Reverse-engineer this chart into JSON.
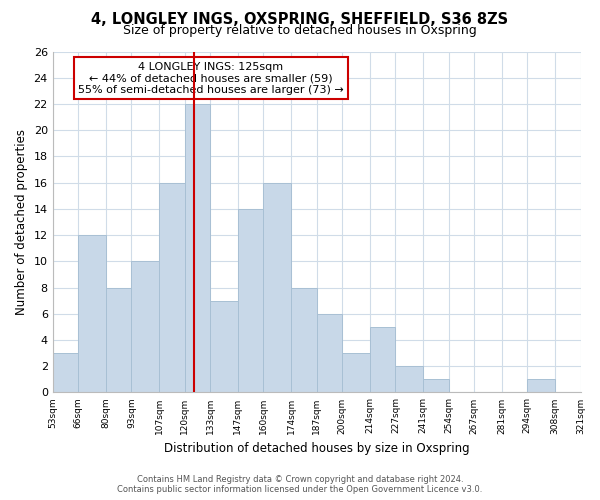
{
  "title": "4, LONGLEY INGS, OXSPRING, SHEFFIELD, S36 8ZS",
  "subtitle": "Size of property relative to detached houses in Oxspring",
  "xlabel": "Distribution of detached houses by size in Oxspring",
  "ylabel": "Number of detached properties",
  "bar_color": "#c8d8e8",
  "bar_edgecolor": "#a8c0d4",
  "reference_line_x": 125,
  "reference_line_color": "#cc0000",
  "annotation_lines": [
    "4 LONGLEY INGS: 125sqm",
    "← 44% of detached houses are smaller (59)",
    "55% of semi-detached houses are larger (73) →"
  ],
  "annotation_box_edgecolor": "#cc0000",
  "bins": [
    53,
    66,
    80,
    93,
    107,
    120,
    133,
    147,
    160,
    174,
    187,
    200,
    214,
    227,
    241,
    254,
    267,
    281,
    294,
    308,
    321
  ],
  "bin_labels": [
    "53sqm",
    "66sqm",
    "80sqm",
    "93sqm",
    "107sqm",
    "120sqm",
    "133sqm",
    "147sqm",
    "160sqm",
    "174sqm",
    "187sqm",
    "200sqm",
    "214sqm",
    "227sqm",
    "241sqm",
    "254sqm",
    "267sqm",
    "281sqm",
    "294sqm",
    "308sqm",
    "321sqm"
  ],
  "counts": [
    3,
    12,
    8,
    10,
    16,
    22,
    7,
    14,
    16,
    8,
    6,
    3,
    5,
    2,
    1,
    0,
    0,
    0,
    1,
    0
  ],
  "ylim": [
    0,
    26
  ],
  "yticks": [
    0,
    2,
    4,
    6,
    8,
    10,
    12,
    14,
    16,
    18,
    20,
    22,
    24,
    26
  ],
  "footer_line1": "Contains HM Land Registry data © Crown copyright and database right 2024.",
  "footer_line2": "Contains public sector information licensed under the Open Government Licence v3.0.",
  "background_color": "#ffffff",
  "grid_color": "#d0dce8"
}
